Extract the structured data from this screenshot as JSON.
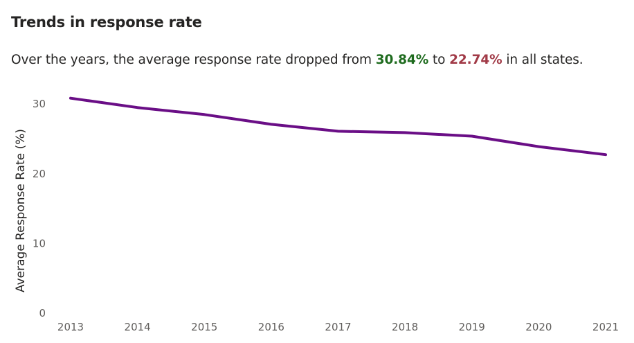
{
  "header": {
    "title": "Trends in response rate",
    "subtitle_prefix": "Over the years, the average response rate dropped from ",
    "subtitle_start_value": "30.84%",
    "subtitle_middle": " to ",
    "subtitle_end_value": "22.74%",
    "subtitle_suffix": " in all states."
  },
  "colors": {
    "line": "#6A0E86",
    "highlight_start": "#1E6B1E",
    "highlight_end": "#A13A47",
    "tick_text": "#605E5C"
  },
  "chart_data": {
    "type": "line",
    "title": "Trends in response rate",
    "xlabel": "",
    "ylabel": "Average Response Rate (%)",
    "x": [
      "2013",
      "2014",
      "2015",
      "2016",
      "2017",
      "2018",
      "2019",
      "2020",
      "2021"
    ],
    "series": [
      {
        "values": [
          30.84,
          29.5,
          28.5,
          27.1,
          26.1,
          25.9,
          25.4,
          23.9,
          22.74
        ]
      }
    ],
    "yticks": [
      0,
      10,
      20,
      30
    ],
    "ylim": [
      0,
      33
    ],
    "grid": false,
    "legend": "none"
  }
}
